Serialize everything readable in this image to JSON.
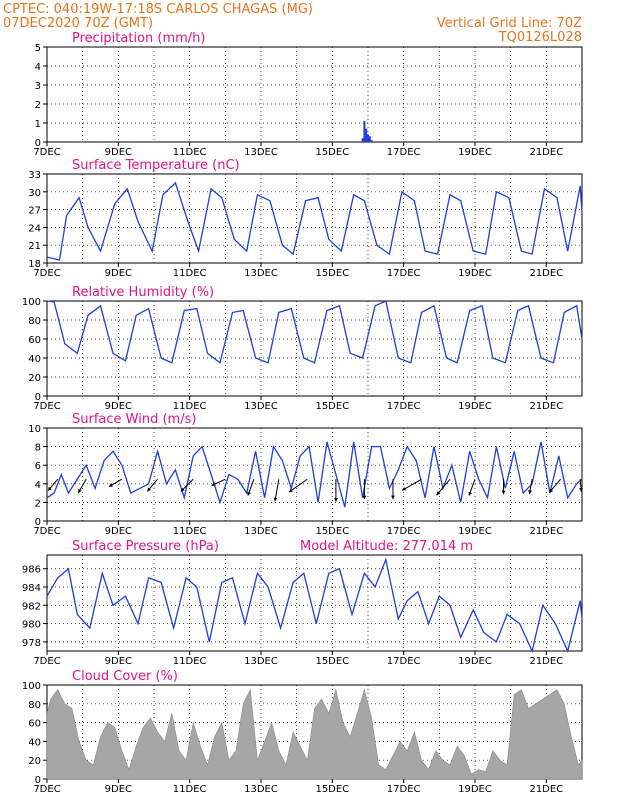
{
  "header": {
    "line1_left": "CPTEC:   040:19W-17:18S   CARLOS CHAGAS (MG)",
    "line2_left": "07DEC2020 70Z (GMT)",
    "line2_right": "Vertical Grid Line: 70Z",
    "line3_right": "TQ0126L028"
  },
  "colors": {
    "header": "#e8731c",
    "panel_title": "#e0158c",
    "series": "#1f3fd9",
    "cloud": "#a6a6a6",
    "grid": "#000000"
  },
  "x_ticks": [
    "7DEC",
    "9DEC",
    "11DEC",
    "13DEC",
    "15DEC",
    "17DEC",
    "19DEC",
    "21DEC"
  ],
  "x_range_days": [
    7,
    22
  ],
  "chart_data": [
    {
      "id": "precip",
      "type": "bar",
      "title": "Precipitation (mm/h)",
      "ylim": [
        0,
        5
      ],
      "yticks": [
        0,
        1,
        2,
        3,
        4,
        5
      ],
      "series": [
        {
          "x": [
            15.85,
            15.9,
            15.95,
            16.0,
            16.05,
            16.1
          ],
          "y": [
            0.2,
            1.1,
            0.7,
            0.4,
            0.3,
            0.1
          ]
        }
      ]
    },
    {
      "id": "temp",
      "type": "line",
      "title": "Surface Temperature (nC)",
      "ylim": [
        18,
        33
      ],
      "yticks": [
        18,
        21,
        24,
        27,
        30,
        33
      ],
      "series": [
        {
          "x": [
            7.0,
            7.35,
            7.55,
            7.9,
            8.15,
            8.5,
            8.9,
            9.25,
            9.55,
            9.95,
            10.25,
            10.6,
            10.95,
            11.25,
            11.6,
            11.9,
            12.25,
            12.6,
            12.9,
            13.25,
            13.6,
            13.9,
            14.25,
            14.6,
            14.9,
            15.25,
            15.6,
            15.9,
            16.25,
            16.6,
            16.95,
            17.3,
            17.6,
            17.95,
            18.3,
            18.6,
            18.95,
            19.3,
            19.6,
            19.95,
            20.3,
            20.6,
            20.95,
            21.3,
            21.6,
            21.95,
            22.0
          ],
          "y": [
            19,
            18.5,
            26,
            29,
            24,
            20,
            28,
            30.5,
            25,
            20,
            29.5,
            31.5,
            25,
            20,
            30.5,
            29,
            22,
            20,
            29.5,
            28.5,
            21,
            19.5,
            28.5,
            29,
            22,
            20,
            29.5,
            28.5,
            21,
            19.5,
            30,
            28.5,
            20,
            19.5,
            29.5,
            28.5,
            20,
            19.5,
            30,
            29,
            20,
            19.5,
            30.5,
            29,
            20,
            31,
            26.5
          ]
        }
      ]
    },
    {
      "id": "rh",
      "type": "line",
      "title": "Relative Humidity (%)",
      "ylim": [
        0,
        100
      ],
      "yticks": [
        0,
        20,
        40,
        60,
        80,
        100
      ],
      "series": [
        {
          "x": [
            7.0,
            7.2,
            7.5,
            7.85,
            8.15,
            8.5,
            8.85,
            9.2,
            9.5,
            9.85,
            10.2,
            10.5,
            10.85,
            11.2,
            11.5,
            11.85,
            12.2,
            12.5,
            12.85,
            13.2,
            13.5,
            13.85,
            14.2,
            14.5,
            14.85,
            15.2,
            15.5,
            15.85,
            16.2,
            16.5,
            16.85,
            17.2,
            17.5,
            17.85,
            18.2,
            18.5,
            18.85,
            19.2,
            19.5,
            19.85,
            20.2,
            20.5,
            20.85,
            21.2,
            21.5,
            21.85,
            22.0
          ],
          "y": [
            100,
            99,
            55,
            45,
            85,
            95,
            45,
            37,
            85,
            92,
            40,
            35,
            90,
            92,
            45,
            35,
            88,
            90,
            40,
            35,
            88,
            92,
            40,
            35,
            90,
            95,
            45,
            40,
            95,
            100,
            40,
            35,
            88,
            95,
            40,
            35,
            90,
            95,
            40,
            35,
            90,
            95,
            40,
            35,
            88,
            95,
            60
          ]
        }
      ]
    },
    {
      "id": "wind",
      "type": "line",
      "title": "Surface Wind (m/s)",
      "ylim": [
        0,
        10
      ],
      "yticks": [
        0,
        2,
        4,
        6,
        8,
        10
      ],
      "series": [
        {
          "x": [
            7.0,
            7.2,
            7.4,
            7.6,
            7.85,
            8.1,
            8.35,
            8.6,
            8.85,
            9.1,
            9.35,
            9.6,
            9.85,
            10.1,
            10.35,
            10.6,
            10.85,
            11.1,
            11.35,
            11.6,
            11.85,
            12.1,
            12.35,
            12.6,
            12.85,
            13.1,
            13.35,
            13.6,
            13.85,
            14.1,
            14.35,
            14.6,
            14.85,
            15.1,
            15.35,
            15.6,
            15.85,
            16.1,
            16.35,
            16.6,
            16.85,
            17.1,
            17.35,
            17.6,
            17.85,
            18.1,
            18.35,
            18.6,
            18.85,
            19.1,
            19.35,
            19.6,
            19.85,
            20.1,
            20.35,
            20.6,
            20.85,
            21.1,
            21.35,
            21.6,
            21.85,
            22.0
          ],
          "y": [
            2.5,
            3.0,
            5.0,
            3.0,
            4.5,
            6.0,
            3.5,
            6.5,
            7.5,
            6.0,
            3.0,
            3.5,
            4.0,
            7.5,
            4.0,
            5.5,
            2.5,
            7.0,
            8.0,
            5.0,
            2.0,
            5.0,
            4.5,
            3.0,
            7.5,
            2.5,
            8.0,
            6.5,
            3.5,
            7.0,
            8.0,
            2.0,
            8.5,
            5.0,
            1.5,
            8.5,
            2.5,
            8.0,
            8.0,
            3.5,
            5.5,
            8.0,
            6.5,
            2.5,
            8.0,
            3.5,
            6.0,
            2.0,
            7.5,
            4.5,
            2.5,
            8.0,
            3.5,
            7.5,
            3.0,
            4.0,
            8.5,
            3.0,
            7.0,
            2.5,
            4.0,
            4.5
          ]
        }
      ],
      "vectors": [
        {
          "x": 7.3,
          "speed": 3.0,
          "dir_deg": 230
        },
        {
          "x": 8.1,
          "speed": 3.2,
          "dir_deg": 240
        },
        {
          "x": 9.1,
          "speed": 3.0,
          "dir_deg": 210
        },
        {
          "x": 10.1,
          "speed": 3.2,
          "dir_deg": 230
        },
        {
          "x": 11.1,
          "speed": 3.5,
          "dir_deg": 225
        },
        {
          "x": 12.0,
          "speed": 3.0,
          "dir_deg": 205
        },
        {
          "x": 12.8,
          "speed": 3.5,
          "dir_deg": 250
        },
        {
          "x": 13.5,
          "speed": 4.5,
          "dir_deg": 260
        },
        {
          "x": 14.3,
          "speed": 4.5,
          "dir_deg": 215
        },
        {
          "x": 15.1,
          "speed": 4.5,
          "dir_deg": 270
        },
        {
          "x": 15.9,
          "speed": 4.0,
          "dir_deg": 270
        },
        {
          "x": 16.7,
          "speed": 4.0,
          "dir_deg": 270
        },
        {
          "x": 17.5,
          "speed": 4.5,
          "dir_deg": 210
        },
        {
          "x": 18.3,
          "speed": 4.2,
          "dir_deg": 230
        },
        {
          "x": 19.0,
          "speed": 3.5,
          "dir_deg": 250
        },
        {
          "x": 19.8,
          "speed": 3.0,
          "dir_deg": 270
        },
        {
          "x": 20.6,
          "speed": 3.0,
          "dir_deg": 260
        },
        {
          "x": 21.4,
          "speed": 3.5,
          "dir_deg": 230
        },
        {
          "x": 21.95,
          "speed": 2.5,
          "dir_deg": 275
        }
      ]
    },
    {
      "id": "pressure",
      "type": "line",
      "title": "Surface Pressure (hPa)",
      "subtitle": "Model Altitude: 277.014 m",
      "ylim": [
        977,
        987.5
      ],
      "yticks": [
        978,
        980,
        982,
        984,
        986
      ],
      "series": [
        {
          "x": [
            7.0,
            7.3,
            7.6,
            7.85,
            8.2,
            8.55,
            8.85,
            9.2,
            9.55,
            9.85,
            10.2,
            10.55,
            10.9,
            11.2,
            11.55,
            11.9,
            12.2,
            12.55,
            12.9,
            13.2,
            13.55,
            13.9,
            14.2,
            14.55,
            14.9,
            15.2,
            15.55,
            15.9,
            16.2,
            16.5,
            16.85,
            17.1,
            17.4,
            17.7,
            18.0,
            18.3,
            18.6,
            18.95,
            19.25,
            19.6,
            19.9,
            20.25,
            20.6,
            20.9,
            21.25,
            21.6,
            21.95,
            22.0
          ],
          "y": [
            983,
            985,
            986,
            981,
            979.5,
            985.5,
            982,
            983,
            980,
            985,
            984.5,
            979.5,
            985,
            984,
            978,
            984.5,
            985,
            980,
            985.5,
            984,
            979.5,
            984.5,
            985.5,
            980,
            985.5,
            986,
            981,
            985.5,
            984,
            987,
            980.5,
            982.5,
            983.5,
            980,
            983,
            982,
            978.5,
            981.5,
            979,
            978,
            981,
            980,
            977,
            982,
            980,
            977,
            982.5,
            980.5
          ]
        }
      ]
    },
    {
      "id": "cloud",
      "type": "area",
      "title": "Cloud Cover (%)",
      "ylim": [
        0,
        100
      ],
      "yticks": [
        0,
        20,
        40,
        60,
        80,
        100
      ],
      "series": [
        {
          "x": [
            7.0,
            7.1,
            7.3,
            7.5,
            7.7,
            7.9,
            8.1,
            8.3,
            8.5,
            8.7,
            8.9,
            9.1,
            9.3,
            9.5,
            9.7,
            9.9,
            10.1,
            10.3,
            10.5,
            10.7,
            10.9,
            11.1,
            11.3,
            11.5,
            11.7,
            11.9,
            12.1,
            12.3,
            12.5,
            12.7,
            12.9,
            13.1,
            13.3,
            13.5,
            13.7,
            13.9,
            14.1,
            14.3,
            14.5,
            14.7,
            14.9,
            15.1,
            15.3,
            15.5,
            15.7,
            15.9,
            16.1,
            16.3,
            16.5,
            16.7,
            16.9,
            17.1,
            17.3,
            17.5,
            17.7,
            17.9,
            18.1,
            18.3,
            18.5,
            18.7,
            18.9,
            19.1,
            19.3,
            19.5,
            19.7,
            19.9,
            20.1,
            20.3,
            20.5,
            20.7,
            20.9,
            21.1,
            21.3,
            21.5,
            21.7,
            21.9,
            22.0
          ],
          "y": [
            70,
            85,
            95,
            80,
            75,
            40,
            20,
            15,
            45,
            60,
            55,
            30,
            10,
            35,
            55,
            65,
            50,
            40,
            70,
            30,
            20,
            60,
            35,
            15,
            45,
            60,
            20,
            30,
            80,
            95,
            20,
            40,
            60,
            30,
            15,
            50,
            35,
            20,
            75,
            85,
            70,
            95,
            60,
            45,
            70,
            95,
            65,
            15,
            10,
            25,
            40,
            30,
            50,
            20,
            10,
            30,
            20,
            15,
            35,
            25,
            5,
            10,
            8,
            30,
            20,
            15,
            90,
            95,
            75,
            80,
            85,
            90,
            95,
            80,
            45,
            15,
            20
          ]
        }
      ]
    }
  ]
}
